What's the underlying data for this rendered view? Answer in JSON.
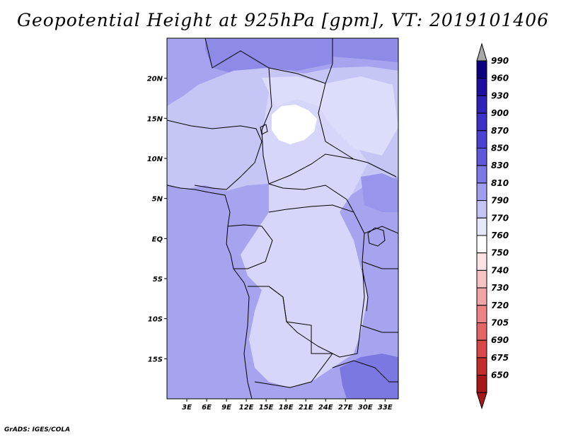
{
  "title": "Geopotential Height at 925hPa [gpm], VT: 2019101406",
  "credit": "GrADS: IGES/COLA",
  "axes": {
    "lon_ticks": [
      "3E",
      "6E",
      "9E",
      "12E",
      "15E",
      "18E",
      "21E",
      "24E",
      "27E",
      "30E",
      "33E"
    ],
    "lat_ticks": [
      "20N",
      "15N",
      "10N",
      "5N",
      "EQ",
      "5S",
      "10S",
      "15S"
    ]
  },
  "colorbar": {
    "levels": [
      "990",
      "960",
      "930",
      "900",
      "870",
      "850",
      "830",
      "810",
      "790",
      "770",
      "760",
      "750",
      "740",
      "730",
      "720",
      "705",
      "690",
      "675",
      "650"
    ],
    "colors": [
      "#0c0080",
      "#1f0fa0",
      "#2e22b8",
      "#3c30c8",
      "#4b42d4",
      "#5e58dc",
      "#7c78e4",
      "#a09ef0",
      "#c4c4f6",
      "#e6e6fc",
      "#ffffff",
      "#fde3e3",
      "#f8c3c3",
      "#f2a5a5",
      "#ec8484",
      "#e46565",
      "#d94747",
      "#c52d2d",
      "#a81818"
    ],
    "top_arrow_color": "#a8a8a8",
    "bottom_arrow_color": "#a81818"
  },
  "map": {
    "extent": {
      "lon": [
        0,
        35
      ],
      "lat": [
        -20,
        25
      ]
    },
    "background_color": "#a6a4ee",
    "regions": [
      {
        "label": "Sahara light band",
        "color": "#c6c6f6"
      },
      {
        "label": "Central Africa light",
        "color": "#d6d6fa"
      },
      {
        "label": "Chad white pocket",
        "color": "#ffffff"
      },
      {
        "label": "Southeast dark",
        "color": "#7c78e2"
      },
      {
        "label": "North dark strip",
        "color": "#8e8be8"
      }
    ]
  }
}
